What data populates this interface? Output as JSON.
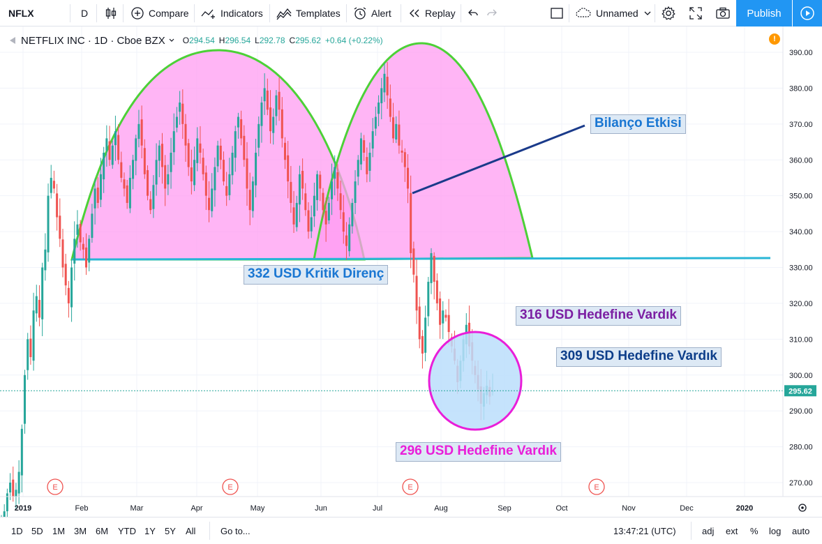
{
  "toolbar": {
    "symbol": "NFLX",
    "interval": "D",
    "compare": "Compare",
    "indicators": "Indicators",
    "templates": "Templates",
    "alert": "Alert",
    "replay": "Replay",
    "layout_name": "Unnamed",
    "publish": "Publish"
  },
  "legend": {
    "title": "NETFLIX INC · 1D · Cboe BZX",
    "o_label": "O",
    "o": "294.54",
    "h_label": "H",
    "h": "296.54",
    "l_label": "L",
    "l": "292.78",
    "c_label": "C",
    "c": "295.62",
    "change": "+0.64 (+0.22%)"
  },
  "alert_badge": "!",
  "annotations": {
    "bilanco": "Bilanço Etkisi",
    "kritik": "332 USD Kritik Direnç",
    "t316": "316 USD Hedefine Vardık",
    "t309": "309 USD Hedefine Vardık",
    "t296": "296 USD Hedefine Vardık"
  },
  "colors": {
    "up": "#26a69a",
    "down": "#ef5350",
    "arc_fill": "#ff9cf2",
    "arc_stroke": "#4cd137",
    "resistance": "#29b6d6",
    "circle_fill": "#bbdefb",
    "circle_stroke": "#e91ed9",
    "trend": "#1a3a8a",
    "kritik_text": "#1976d2",
    "bilanco_text": "#1976d2",
    "t316_text": "#7b1fa2",
    "t309_text": "#0d3e8a",
    "t296_text": "#e91ed9"
  },
  "chart_data": {
    "type": "candlestick",
    "ylim": [
      264,
      396
    ],
    "y_ticks": [
      270,
      280,
      290,
      300,
      310,
      320,
      330,
      340,
      350,
      360,
      370,
      380,
      390
    ],
    "x_ticks": [
      "2019",
      "Feb",
      "Mar",
      "Apr",
      "May",
      "Jun",
      "Jul",
      "Aug",
      "Sep",
      "Oct",
      "Nov",
      "Dec",
      "2020"
    ],
    "last_price": 295.62,
    "earnings_markers": [
      "E",
      "E",
      "E",
      "E"
    ],
    "resistance": 332,
    "closes": [
      258,
      262,
      267,
      270,
      266,
      268,
      273,
      285,
      300,
      310,
      305,
      318,
      322,
      316,
      330,
      335,
      350,
      355,
      352,
      344,
      338,
      330,
      325,
      320,
      330,
      338,
      342,
      337,
      335,
      330,
      338,
      345,
      352,
      348,
      356,
      362,
      366,
      360,
      364,
      368,
      360,
      355,
      352,
      348,
      355,
      360,
      366,
      370,
      364,
      356,
      350,
      346,
      353,
      360,
      364,
      358,
      352,
      356,
      362,
      368,
      372,
      376,
      370,
      364,
      358,
      354,
      360,
      366,
      362,
      356,
      350,
      346,
      352,
      358,
      364,
      360,
      354,
      350,
      356,
      362,
      368,
      372,
      366,
      360,
      352,
      346,
      354,
      362,
      370,
      376,
      380,
      374,
      368,
      372,
      378,
      374,
      366,
      360,
      354,
      348,
      342,
      348,
      356,
      352,
      346,
      340,
      344,
      350,
      356,
      352,
      346,
      342,
      348,
      354,
      358,
      352,
      346,
      340,
      336,
      342,
      348,
      354,
      360,
      366,
      362,
      356,
      362,
      368,
      372,
      376,
      380,
      384,
      378,
      372,
      366,
      370,
      364,
      362,
      358,
      352,
      334,
      328,
      318,
      310,
      306,
      316,
      326,
      334,
      326,
      320,
      314,
      318,
      316,
      312,
      308,
      304,
      298,
      304,
      310,
      314,
      308,
      304,
      300,
      296,
      292,
      295,
      297,
      294,
      295.62
    ]
  }
}
